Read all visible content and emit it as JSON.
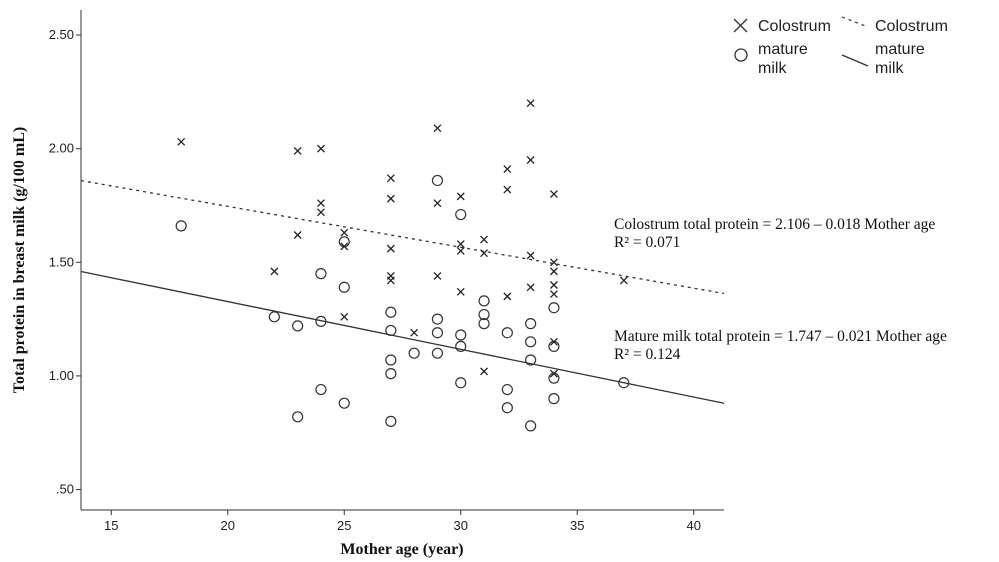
{
  "chart_data": {
    "type": "scatter",
    "xlabel": "Mother age (year)",
    "ylabel": "Total protein in breast milk (g/100 mL)",
    "xlim": [
      13.7,
      41.3
    ],
    "ylim": [
      0.41,
      2.61
    ],
    "x_ticks": [
      15,
      20,
      25,
      30,
      35,
      40
    ],
    "y_ticks": [
      0.5,
      1.0,
      1.5,
      2.0,
      2.5
    ],
    "y_tick_labels": [
      ".50",
      "1.00",
      "1.50",
      "2.00",
      "2.50"
    ],
    "grid": false,
    "legend_position": "top-right",
    "series": [
      {
        "name": "Colostrum",
        "marker": "x",
        "points": [
          [
            18,
            2.03
          ],
          [
            22,
            1.46
          ],
          [
            23,
            1.99
          ],
          [
            23,
            1.62
          ],
          [
            24,
            2.0
          ],
          [
            24,
            1.76
          ],
          [
            24,
            1.72
          ],
          [
            25,
            1.63
          ],
          [
            25,
            1.57
          ],
          [
            25,
            1.26
          ],
          [
            27,
            1.87
          ],
          [
            27,
            1.78
          ],
          [
            27,
            1.56
          ],
          [
            27,
            1.44
          ],
          [
            27,
            1.42
          ],
          [
            28,
            1.19
          ],
          [
            29,
            2.09
          ],
          [
            29,
            1.76
          ],
          [
            29,
            1.44
          ],
          [
            30,
            1.79
          ],
          [
            30,
            1.58
          ],
          [
            30,
            1.55
          ],
          [
            30,
            1.37
          ],
          [
            31,
            1.6
          ],
          [
            31,
            1.54
          ],
          [
            31,
            1.02
          ],
          [
            32,
            1.91
          ],
          [
            32,
            1.82
          ],
          [
            32,
            1.35
          ],
          [
            33,
            2.2
          ],
          [
            33,
            1.95
          ],
          [
            33,
            1.53
          ],
          [
            33,
            1.39
          ],
          [
            34,
            1.8
          ],
          [
            34,
            1.5
          ],
          [
            34,
            1.46
          ],
          [
            34,
            1.4
          ],
          [
            34,
            1.36
          ],
          [
            34,
            1.15
          ],
          [
            34,
            1.01
          ],
          [
            37,
            1.42
          ]
        ]
      },
      {
        "name": "mature milk",
        "marker": "o",
        "points": [
          [
            18,
            1.66
          ],
          [
            22,
            1.26
          ],
          [
            23,
            1.22
          ],
          [
            23,
            0.82
          ],
          [
            24,
            1.45
          ],
          [
            24,
            1.24
          ],
          [
            24,
            0.94
          ],
          [
            25,
            1.59
          ],
          [
            25,
            1.39
          ],
          [
            25,
            0.88
          ],
          [
            27,
            1.28
          ],
          [
            27,
            1.2
          ],
          [
            27,
            1.07
          ],
          [
            27,
            1.01
          ],
          [
            27,
            0.8
          ],
          [
            28,
            1.1
          ],
          [
            29,
            1.86
          ],
          [
            29,
            1.25
          ],
          [
            29,
            1.19
          ],
          [
            29,
            1.1
          ],
          [
            30,
            1.71
          ],
          [
            30,
            1.18
          ],
          [
            30,
            1.13
          ],
          [
            30,
            0.97
          ],
          [
            31,
            1.33
          ],
          [
            31,
            1.27
          ],
          [
            31,
            1.23
          ],
          [
            32,
            1.19
          ],
          [
            32,
            0.94
          ],
          [
            32,
            0.86
          ],
          [
            33,
            1.23
          ],
          [
            33,
            1.15
          ],
          [
            33,
            1.07
          ],
          [
            33,
            0.78
          ],
          [
            34,
            1.3
          ],
          [
            34,
            1.13
          ],
          [
            34,
            0.99
          ],
          [
            34,
            0.9
          ],
          [
            37,
            0.97
          ]
        ]
      }
    ],
    "fit_lines": [
      {
        "name": "Colostrum",
        "intercept": 2.106,
        "slope": -0.018,
        "style": "dashed",
        "x_range": [
          13.7,
          41.3
        ]
      },
      {
        "name": "mature milk",
        "intercept": 1.747,
        "slope": -0.021,
        "style": "solid",
        "x_range": [
          13.7,
          41.3
        ]
      }
    ],
    "annotations": [
      {
        "equation": "Colostrum total protein = 2.106 – 0.018 Mother age",
        "r2": "R² = 0.071"
      },
      {
        "equation": "Mature milk total protein = 1.747 – 0.021 Mother age",
        "r2": "R² = 0.124"
      }
    ],
    "legend": {
      "markers": [
        {
          "symbol": "x",
          "label": "Colostrum"
        },
        {
          "symbol": "o",
          "label_lines": [
            "mature",
            "milk"
          ]
        }
      ],
      "lines": [
        {
          "style": "dashed",
          "label": "Colostrum"
        },
        {
          "style": "solid",
          "label_lines": [
            "mature",
            "milk"
          ]
        }
      ]
    }
  }
}
